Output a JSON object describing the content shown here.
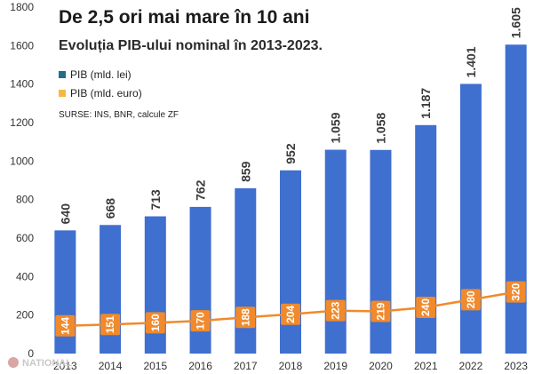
{
  "chart_data": {
    "type": "bar",
    "title": "De 2,5 ori mai mare în 10 ani",
    "subtitle": "Evoluția PIB-ului nominal în 2013-2023.",
    "source": "SURSE: INS, BNR, calcule ZF",
    "categories": [
      "2013",
      "2014",
      "2015",
      "2016",
      "2017",
      "2018",
      "2019",
      "2020",
      "2021",
      "2022",
      "2023"
    ],
    "series": [
      {
        "name": "PIB (mld. lei)",
        "type": "bar",
        "color": "#3F6FCF",
        "values": [
          640,
          668,
          713,
          762,
          859,
          952,
          1059,
          1058,
          1187,
          1401,
          1605
        ],
        "labels": [
          "640",
          "668",
          "713",
          "762",
          "859",
          "952",
          "1.059",
          "1.058",
          "1.187",
          "1.401",
          "1.605"
        ]
      },
      {
        "name": "PIB (mld. euro)",
        "type": "line",
        "color": "#F08A2C",
        "values": [
          144,
          151,
          160,
          170,
          188,
          204,
          223,
          219,
          240,
          280,
          320
        ],
        "labels": [
          "144",
          "151",
          "160",
          "170",
          "188",
          "204",
          "223",
          "219",
          "240",
          "280",
          "320"
        ]
      }
    ],
    "ylim": [
      0,
      1800
    ],
    "yticks": [
      "0",
      "200",
      "400",
      "600",
      "800",
      "1000",
      "1200",
      "1400",
      "1600",
      "1800"
    ],
    "legend_colors": [
      "#1F6E8C",
      "#F5B942"
    ],
    "legend_position": "top-left",
    "grid": false
  },
  "watermark": "NATIONAL"
}
